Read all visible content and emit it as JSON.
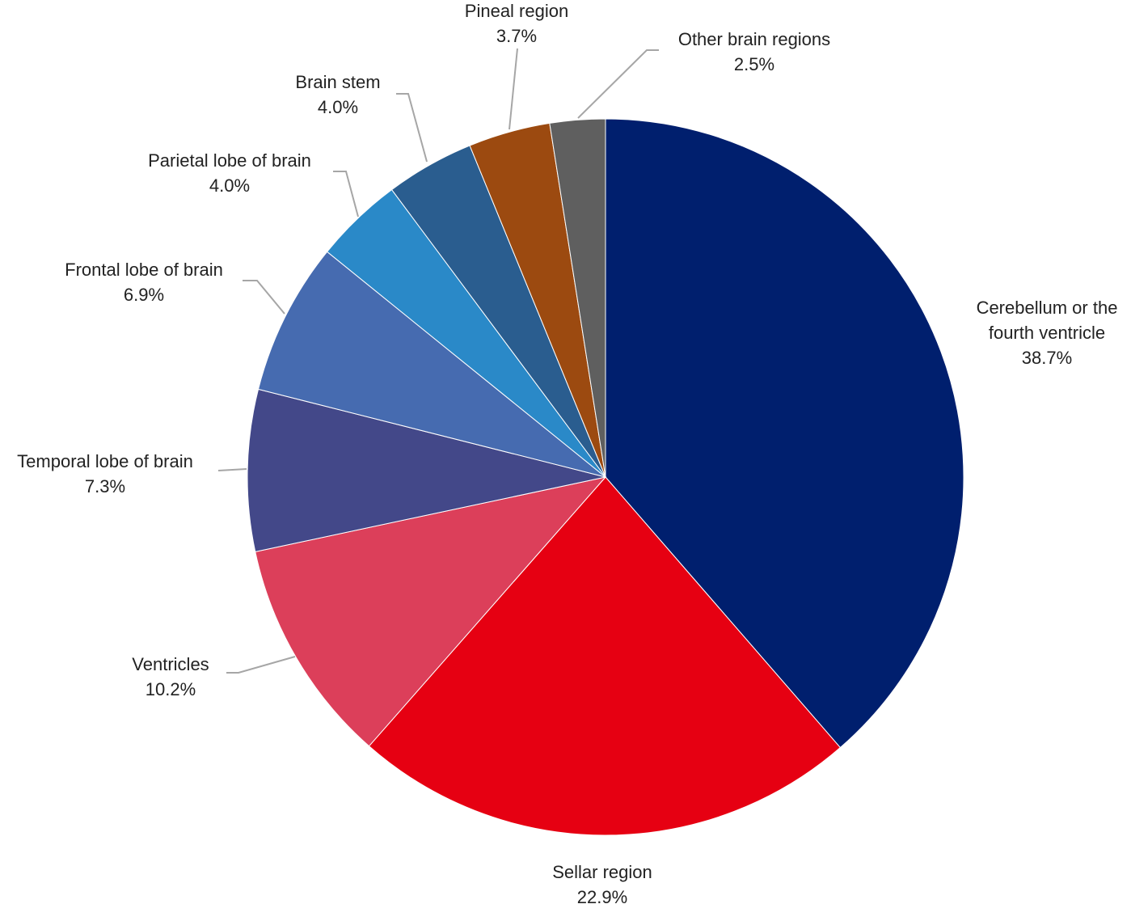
{
  "chart_data": {
    "type": "pie",
    "categories": [
      "Cerebellum or the fourth ventricle",
      "Sellar region",
      "Ventricles",
      "Temporal lobe of brain",
      "Frontal lobe of brain",
      "Parietal lobe of brain",
      "Brain stem",
      "Pineal region",
      "Other brain regions"
    ],
    "values": [
      38.7,
      22.9,
      10.2,
      7.3,
      6.9,
      4.0,
      4.0,
      3.7,
      2.5
    ],
    "value_labels": [
      "38.7%",
      "22.9%",
      "10.2%",
      "7.3%",
      "6.9%",
      "4.0%",
      "4.0%",
      "3.7%",
      "2.5%"
    ],
    "colors": [
      "#001f6e",
      "#e60012",
      "#dc3f5a",
      "#434889",
      "#466bb0",
      "#2a89c8",
      "#2a5d8f",
      "#9c4a10",
      "#5f5f5f"
    ]
  }
}
